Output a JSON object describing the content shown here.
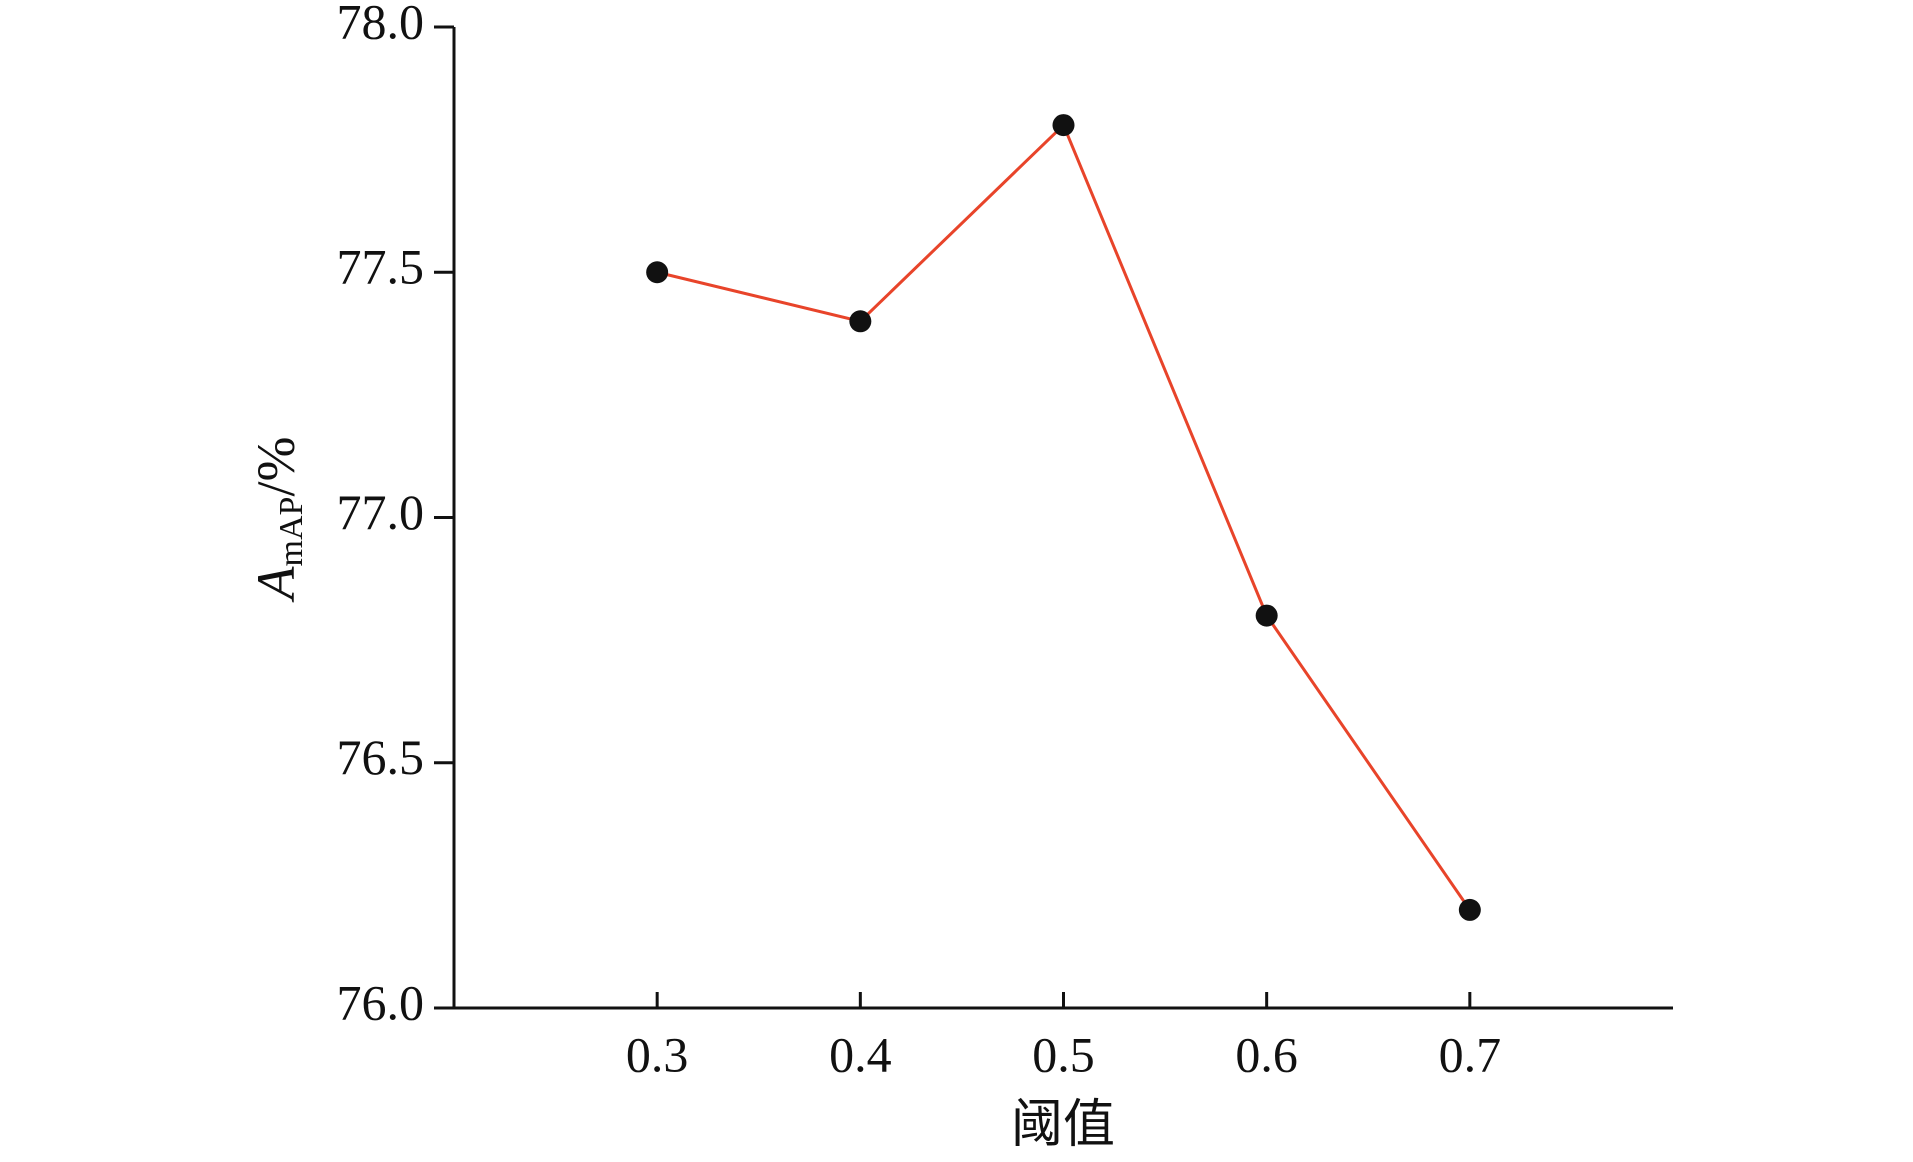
{
  "chart_data": {
    "type": "line",
    "x": [
      0.3,
      0.4,
      0.5,
      0.6,
      0.7
    ],
    "series": [
      {
        "color": "#e8442a",
        "marker_color": "#111111",
        "values": [
          77.5,
          77.4,
          77.8,
          76.8,
          76.2
        ]
      }
    ],
    "xlim": [
      0.2,
      0.8
    ],
    "xticks": [
      0.3,
      0.4,
      0.5,
      0.6,
      0.7
    ],
    "ylim": [
      76,
      78
    ],
    "yticks": [
      {
        "value": 76,
        "label": "76.0"
      },
      76.5,
      {
        "value": 77,
        "label": "77.0"
      },
      77.5,
      {
        "value": 78,
        "label": "78.0"
      }
    ],
    "xlabel": "阈值",
    "ylabel": {
      "main": "A",
      "sub": "mAP",
      "suffix": "/%"
    },
    "grid": false
  }
}
